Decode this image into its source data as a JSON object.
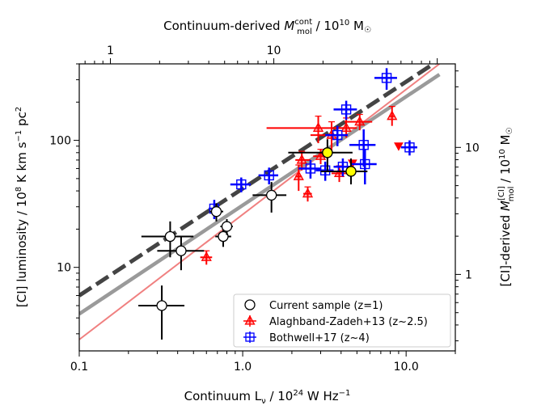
{
  "chart_data": {
    "type": "scatter",
    "title": "",
    "xlabel": "Continuum L",
    "xlabel_sub": "ν",
    "xlabel_tail": " / 10",
    "xlabel_sup": "24",
    "xlabel_unit": " W Hz",
    "xlabel_unit_sup": "−1",
    "ylabel": "[CI] luminosity / 10",
    "ylabel_sup": "8",
    "ylabel_unit": " K km s",
    "ylabel_unit_sup": "−1",
    "ylabel_unit2": " pc",
    "ylabel_unit2_sup": "2",
    "top_xlabel": "Continuum-derived ",
    "top_xlabel_sym": "M",
    "top_xlabel_sup": "cont",
    "top_xlabel_sub": "mol",
    "top_xlabel_tail": " / 10",
    "top_xlabel_exp": "10",
    "top_xlabel_unit": " M",
    "top_xlabel_sun": "☉",
    "right_ylabel": "[CI]-derived ",
    "right_ylabel_sym": "M",
    "right_ylabel_sup": "[CI]",
    "right_ylabel_sub": "mol",
    "right_ylabel_tail": " / 10",
    "right_ylabel_exp": "10",
    "right_ylabel_unit": " M",
    "right_ylabel_sun": "☉",
    "x_scale": "log",
    "y_scale": "log",
    "xlim": [
      0.1,
      20
    ],
    "ylim": [
      2.2,
      400
    ],
    "x_ticks": [
      {
        "value": 0.1,
        "label": "0.1"
      },
      {
        "value": 1,
        "label": "1.0"
      },
      {
        "value": 10,
        "label": "10.0"
      }
    ],
    "y_ticks": [
      {
        "value": 10,
        "label": "10"
      },
      {
        "value": 100,
        "label": "100"
      }
    ],
    "top_ticks": [
      {
        "value": 0.155,
        "label": "1"
      },
      {
        "value": 1.55,
        "label": "10"
      }
    ],
    "right_ticks": [
      {
        "value": 8.8,
        "label": "1"
      },
      {
        "value": 88,
        "label": "10"
      }
    ],
    "reference_lines": [
      {
        "name": "dashed-relation",
        "color": "#444444",
        "style": "dashed",
        "points": [
          [
            0.1,
            6.0
          ],
          [
            16,
            430
          ]
        ]
      },
      {
        "name": "grey-relation",
        "color": "#9a9a9a",
        "style": "solid",
        "points": [
          [
            0.1,
            4.3
          ],
          [
            16,
            330
          ]
        ]
      },
      {
        "name": "pink-relation",
        "color": "#f08080",
        "style": "solid",
        "points": [
          [
            0.1,
            2.7
          ],
          [
            16,
            400
          ]
        ]
      }
    ],
    "series": [
      {
        "name": "Current sample (z=1)",
        "marker": "circle",
        "color": "#000000",
        "points": [
          {
            "x": 0.32,
            "y": 5.0,
            "xerr": [
              0.09,
              0.12
            ],
            "yerr": [
              2.3,
              2.2
            ]
          },
          {
            "x": 0.36,
            "y": 17.5,
            "xerr": [
              0.12,
              0.14
            ],
            "yerr": [
              5.5,
              5.5
            ]
          },
          {
            "x": 0.42,
            "y": 13.5,
            "xerr": [
              0.12,
              0.16
            ],
            "yerr": [
              4.0,
              4.0
            ]
          },
          {
            "x": 0.69,
            "y": 27.5,
            "xerr": [
              0.06,
              0.07
            ],
            "yerr": [
              4.5,
              4.5
            ]
          },
          {
            "x": 0.76,
            "y": 17.5,
            "xerr": [
              0.08,
              0.09
            ],
            "yerr": [
              3.0,
              3.0
            ]
          },
          {
            "x": 0.8,
            "y": 21.0,
            "xerr": [
              0.07,
              0.07
            ],
            "yerr": [
              3.0,
              3.0
            ]
          },
          {
            "x": 1.5,
            "y": 37.0,
            "xerr": [
              0.35,
              0.35
            ],
            "yerr": [
              10.0,
              10.0
            ]
          },
          {
            "x": 3.3,
            "y": 80.0,
            "xerr": [
              1.4,
              1.4
            ],
            "yerr": [
              22.0,
              22.0
            ]
          },
          {
            "x": 4.6,
            "y": 57.0,
            "xerr": [
              1.6,
              1.2
            ],
            "yerr": [
              12.0,
              15.0
            ]
          }
        ]
      },
      {
        "name": "Alaghband-Zadeh+13 (z~2.5)",
        "marker": "triangle",
        "color": "#ff0000",
        "points": [
          {
            "x": 0.6,
            "y": 12.0,
            "xerr": [
              0.05,
              0.05
            ],
            "yerr": [
              1.5,
              1.5
            ]
          },
          {
            "x": 2.2,
            "y": 52.0,
            "xerr": [
              0.1,
              0.1
            ],
            "yerr": [
              12.0,
              12.0
            ]
          },
          {
            "x": 2.3,
            "y": 70.0,
            "xerr": [
              0.2,
              0.3
            ],
            "yerr": [
              12.0,
              12.0
            ]
          },
          {
            "x": 2.5,
            "y": 38.0,
            "xerr": [
              0.15,
              0.15
            ],
            "yerr": [
              5.0,
              5.0
            ]
          },
          {
            "x": 2.9,
            "y": 125.0,
            "xerr": [
              1.5,
              1.3
            ],
            "yerr": [
              30.0,
              30.0
            ]
          },
          {
            "x": 3.0,
            "y": 75.0,
            "xerr": [
              0.3,
              0.3
            ],
            "yerr": [
              10.0,
              10.0
            ]
          },
          {
            "x": 3.5,
            "y": 110.0,
            "xerr": [
              0.9,
              0.9
            ],
            "yerr": [
              30.0,
              30.0
            ]
          },
          {
            "x": 3.9,
            "y": 55.0,
            "xerr": [
              0.4,
              0.4
            ],
            "yerr": [
              8.0,
              8.0
            ]
          },
          {
            "x": 4.3,
            "y": 125.0,
            "xerr": [
              0.7,
              0.7
            ],
            "yerr": [
              20.0,
              25.0
            ]
          },
          {
            "x": 5.2,
            "y": 140.0,
            "xerr": [
              1.0,
              1.0
            ],
            "yerr": [
              20.0,
              20.0
            ]
          },
          {
            "x": 8.2,
            "y": 155.0,
            "xerr": [
              0.3,
              0.3
            ],
            "yerr": [
              25.0,
              30.0
            ]
          }
        ]
      },
      {
        "name": "Bothwell+17 (z~4)",
        "marker": "square",
        "color": "#0000ff",
        "points": [
          {
            "x": 0.67,
            "y": 29.0,
            "xerr": [
              0.05,
              0.05
            ],
            "yerr": [
              5.0,
              5.0
            ]
          },
          {
            "x": 0.98,
            "y": 45.0,
            "xerr": [
              0.14,
              0.14
            ],
            "yerr": [
              6.0,
              6.0
            ]
          },
          {
            "x": 1.45,
            "y": 53.0,
            "xerr": [
              0.2,
              0.2
            ],
            "yerr": [
              8.0,
              8.0
            ]
          },
          {
            "x": 2.6,
            "y": 60.0,
            "xerr": [
              0.4,
              0.4
            ],
            "yerr": [
              10.0,
              10.0
            ]
          },
          {
            "x": 3.2,
            "y": 58.0,
            "xerr": [
              0.4,
              0.4
            ],
            "yerr": [
              10.0,
              10.0
            ]
          },
          {
            "x": 3.8,
            "y": 110.0,
            "xerr": [
              0.6,
              0.6
            ],
            "yerr": [
              20.0,
              20.0
            ]
          },
          {
            "x": 4.1,
            "y": 62.0,
            "xerr": [
              0.5,
              0.5
            ],
            "yerr": [
              10.0,
              10.0
            ]
          },
          {
            "x": 4.3,
            "y": 175.0,
            "xerr": [
              0.7,
              0.7
            ],
            "yerr": [
              30.0,
              30.0
            ]
          },
          {
            "x": 5.5,
            "y": 92.0,
            "xerr": [
              1.0,
              1.0
            ],
            "yerr": [
              30.0,
              30.0
            ]
          },
          {
            "x": 5.6,
            "y": 65.0,
            "xerr": [
              1.0,
              1.0
            ],
            "yerr": [
              20.0,
              20.0
            ]
          },
          {
            "x": 7.6,
            "y": 310.0,
            "xerr": [
              1.2,
              1.2
            ],
            "yerr": [
              60.0,
              60.0
            ]
          },
          {
            "x": 10.5,
            "y": 88.0,
            "xerr": [
              1.2,
              1.2
            ],
            "yerr": [
              12.0,
              12.0
            ]
          }
        ]
      },
      {
        "name": "highlighted",
        "marker": "circle-filled",
        "color": "#ffff00",
        "points": [
          {
            "x": 3.3,
            "y": 80.0
          },
          {
            "x": 4.6,
            "y": 57.0
          }
        ]
      },
      {
        "name": "upper-limits",
        "marker": "triangle-down",
        "color": "#ff0000",
        "points": [
          {
            "x": 4.7,
            "y": 66.0
          },
          {
            "x": 9.0,
            "y": 90.0
          }
        ]
      }
    ],
    "legend": {
      "position": "lower-right",
      "entries": [
        {
          "label": "Current sample (z=1)",
          "marker": "circle",
          "color": "#000000"
        },
        {
          "label": "Alaghband-Zadeh+13 (z~2.5)",
          "marker": "triangle",
          "color": "#ff0000"
        },
        {
          "label": "Bothwell+17 (z~4)",
          "marker": "square",
          "color": "#0000ff"
        }
      ]
    }
  }
}
